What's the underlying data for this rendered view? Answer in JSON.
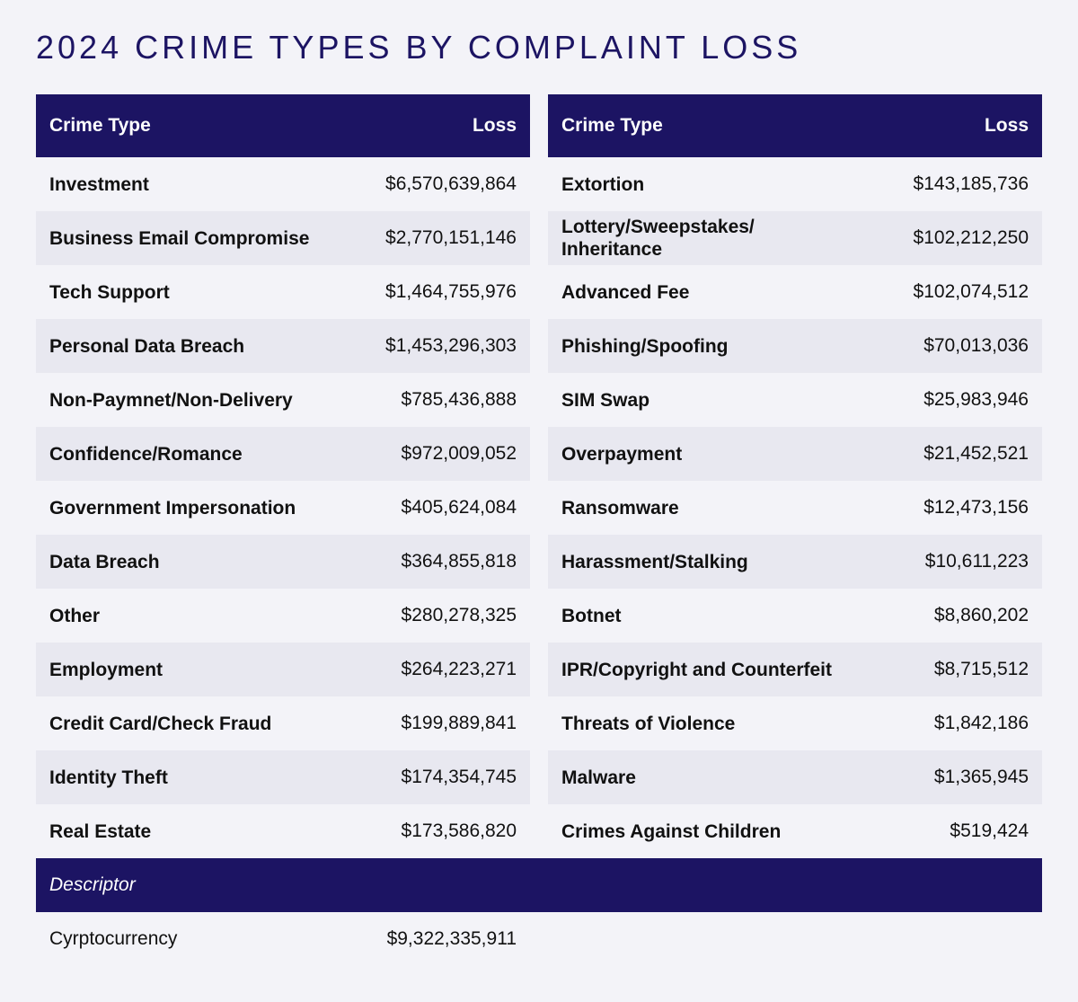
{
  "title": "2024 CRIME TYPES BY COMPLAINT LOSS",
  "columns": {
    "crime_type": "Crime Type",
    "loss": "Loss"
  },
  "left_rows": [
    {
      "name": "Investment",
      "loss": "$6,570,639,864"
    },
    {
      "name": "Business Email Compromise",
      "loss": "$2,770,151,146"
    },
    {
      "name": "Tech Support",
      "loss": "$1,464,755,976"
    },
    {
      "name": "Personal Data Breach",
      "loss": "$1,453,296,303"
    },
    {
      "name": "Non-Paymnet/Non-Delivery",
      "loss": "$785,436,888"
    },
    {
      "name": "Confidence/Romance",
      "loss": "$972,009,052"
    },
    {
      "name": "Government Impersonation",
      "loss": "$405,624,084"
    },
    {
      "name": "Data Breach",
      "loss": "$364,855,818"
    },
    {
      "name": "Other",
      "loss": "$280,278,325"
    },
    {
      "name": "Employment",
      "loss": "$264,223,271"
    },
    {
      "name": "Credit Card/Check Fraud",
      "loss": "$199,889,841"
    },
    {
      "name": "Identity Theft",
      "loss": "$174,354,745"
    },
    {
      "name": "Real Estate",
      "loss": "$173,586,820"
    }
  ],
  "right_rows": [
    {
      "name": "Extortion",
      "loss": "$143,185,736"
    },
    {
      "name": "Lottery/Sweepstakes/ Inheritance",
      "loss": "$102,212,250"
    },
    {
      "name": "Advanced Fee",
      "loss": "$102,074,512"
    },
    {
      "name": "Phishing/Spoofing",
      "loss": "$70,013,036"
    },
    {
      "name": "SIM Swap",
      "loss": "$25,983,946"
    },
    {
      "name": "Overpayment",
      "loss": "$21,452,521"
    },
    {
      "name": "Ransomware",
      "loss": "$12,473,156"
    },
    {
      "name": "Harassment/Stalking",
      "loss": "$10,611,223"
    },
    {
      "name": "Botnet",
      "loss": "$8,860,202"
    },
    {
      "name": "IPR/Copyright and Counterfeit",
      "loss": "$8,715,512"
    },
    {
      "name": "Threats of Violence",
      "loss": "$1,842,186"
    },
    {
      "name": "Malware",
      "loss": "$1,365,945"
    },
    {
      "name": "Crimes Against Children",
      "loss": "$519,424"
    }
  ],
  "descriptor": {
    "label": "Descriptor",
    "rows": [
      {
        "name": "Cyrptocurrency",
        "loss": "$9,322,335,911"
      }
    ]
  },
  "colors": {
    "header_bg": "#1c1463",
    "title": "#1c1463",
    "alt_row": "#e8e8f0",
    "page_bg": "#f3f3f8"
  }
}
